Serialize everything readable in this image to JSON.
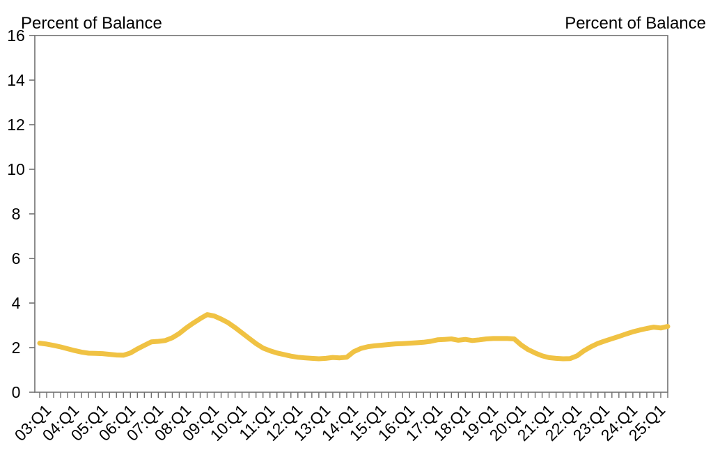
{
  "chart_data": {
    "type": "line",
    "title": "",
    "left_axis_unit_label": "Percent of Balance",
    "right_axis_unit_label": "Percent of Balance",
    "ylabel": "Percent of Balance",
    "ylim": [
      0,
      16
    ],
    "y_tick_step": 2,
    "y_tick_labels": [
      "0",
      "2",
      "4",
      "6",
      "8",
      "10",
      "12",
      "14",
      "16"
    ],
    "x_start": "2003:Q1",
    "x_end": "2025:Q3",
    "x_frequency": "quarterly",
    "x_points_count": 91,
    "x_label_every_n_quarters": 4,
    "x_tick_labels": [
      "03:Q1",
      "04:Q1",
      "05:Q1",
      "06:Q1",
      "07:Q1",
      "08:Q1",
      "09:Q1",
      "10:Q1",
      "11:Q1",
      "12:Q1",
      "13:Q1",
      "14:Q1",
      "15:Q1",
      "16:Q1",
      "17:Q1",
      "18:Q1",
      "19:Q1",
      "20:Q1",
      "21:Q1",
      "22:Q1",
      "23:Q1",
      "24:Q1",
      "25:Q1"
    ],
    "grid": "off",
    "legend": "none",
    "line_color": "#F0C243",
    "axis_color": "#6f6f6f",
    "values": [
      2.2,
      2.16,
      2.1,
      2.03,
      1.95,
      1.87,
      1.8,
      1.75,
      1.74,
      1.73,
      1.7,
      1.67,
      1.66,
      1.76,
      1.94,
      2.1,
      2.26,
      2.28,
      2.32,
      2.44,
      2.63,
      2.88,
      3.1,
      3.3,
      3.48,
      3.42,
      3.28,
      3.12,
      2.9,
      2.66,
      2.42,
      2.18,
      1.98,
      1.86,
      1.76,
      1.69,
      1.62,
      1.57,
      1.54,
      1.52,
      1.5,
      1.52,
      1.56,
      1.54,
      1.57,
      1.82,
      1.96,
      2.04,
      2.08,
      2.11,
      2.14,
      2.17,
      2.18,
      2.2,
      2.22,
      2.24,
      2.28,
      2.35,
      2.37,
      2.39,
      2.33,
      2.37,
      2.32,
      2.35,
      2.39,
      2.41,
      2.41,
      2.41,
      2.39,
      2.12,
      1.91,
      1.76,
      1.63,
      1.55,
      1.52,
      1.5,
      1.51,
      1.63,
      1.86,
      2.04,
      2.19,
      2.3,
      2.4,
      2.5,
      2.61,
      2.71,
      2.79,
      2.86,
      2.92,
      2.88,
      2.95
    ]
  }
}
